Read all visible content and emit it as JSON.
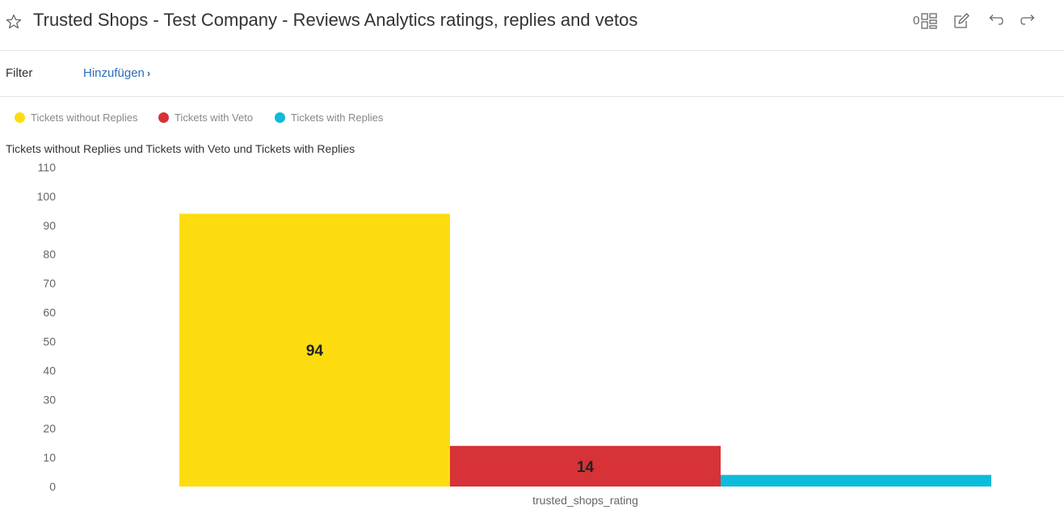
{
  "header": {
    "title": "Trusted Shops - Test Company - Reviews Analytics ratings, replies and vetos",
    "count": "0",
    "icons": [
      "star-icon",
      "dashboard-grid-icon",
      "edit-icon",
      "undo-icon",
      "redo-icon"
    ]
  },
  "filter": {
    "label": "Filter",
    "add_label": "Hinzufügen"
  },
  "colors": {
    "yellow": "#FDDC0F",
    "red": "#D63237",
    "cyan": "#0DBBDB",
    "link": "#2a6ebb"
  },
  "legend": [
    {
      "label": "Tickets without Replies",
      "color": "#FDDC0F"
    },
    {
      "label": "Tickets with Veto",
      "color": "#D63237"
    },
    {
      "label": "Tickets with Replies",
      "color": "#0DBBDB"
    }
  ],
  "chart_data": {
    "type": "bar",
    "title": "Tickets without Replies und Tickets with Veto und Tickets with Replies",
    "categories": [
      "trusted_shops_rating"
    ],
    "series": [
      {
        "name": "Tickets without Replies",
        "values": [
          94
        ],
        "color": "#FDDC0F",
        "data_label": "94"
      },
      {
        "name": "Tickets with Veto",
        "values": [
          14
        ],
        "color": "#D63237",
        "data_label": "14"
      },
      {
        "name": "Tickets with Replies",
        "values": [
          4
        ],
        "color": "#0DBBDB",
        "data_label": ""
      }
    ],
    "ylim": [
      0,
      110
    ],
    "yticks": [
      "0",
      "10",
      "20",
      "30",
      "40",
      "50",
      "60",
      "70",
      "80",
      "90",
      "100",
      "110"
    ],
    "grid": false,
    "legend_position": "top-left"
  }
}
